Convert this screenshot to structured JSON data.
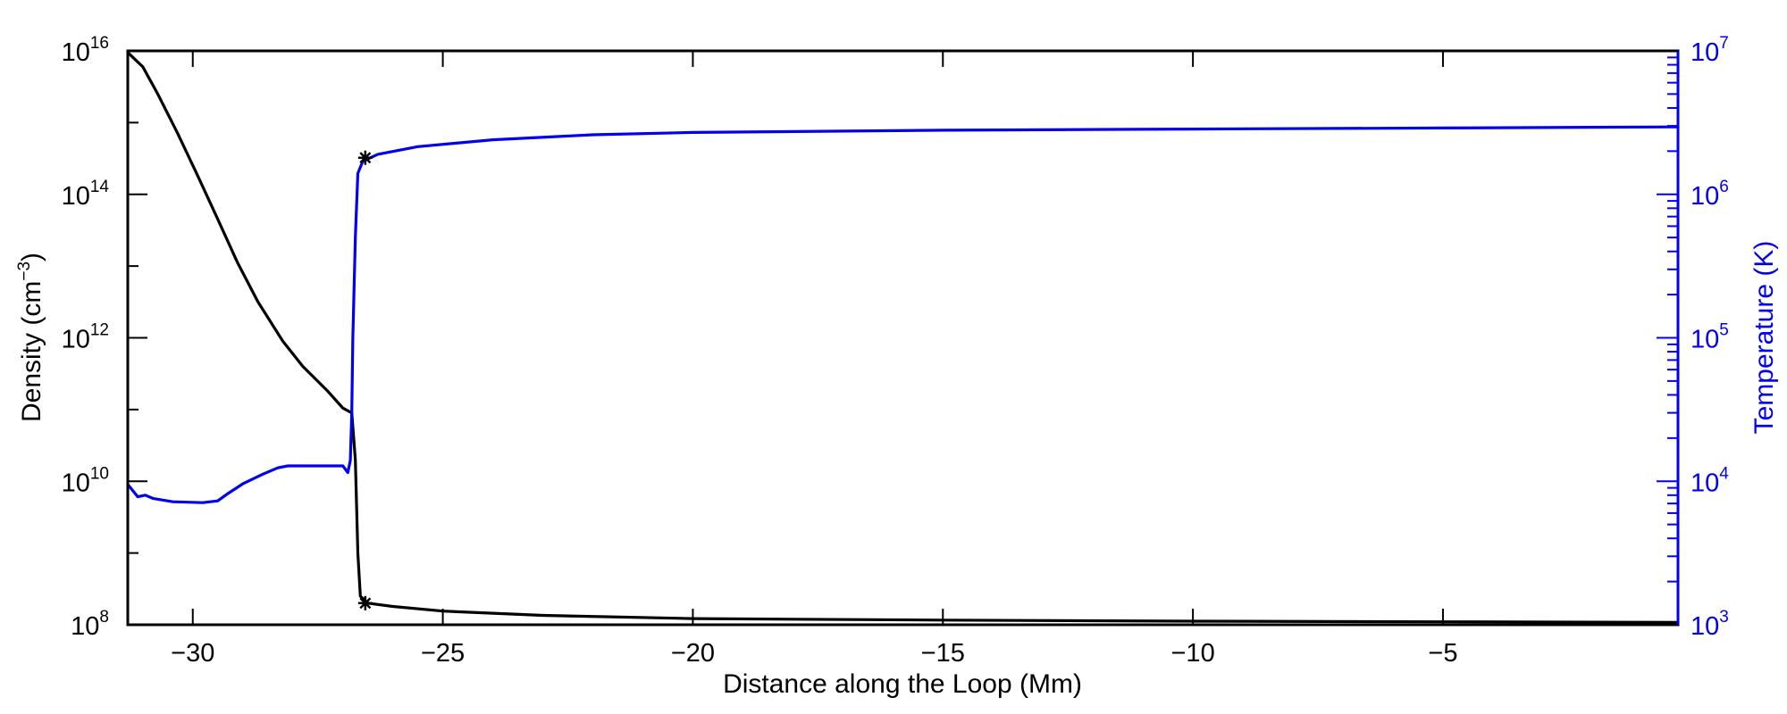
{
  "chart_data": {
    "type": "line",
    "title": "",
    "xlabel": "Distance along the Loop (Mm)",
    "x_range": [
      -31.3,
      -0.3
    ],
    "x_ticks": [
      {
        "value": -30,
        "label": "−30"
      },
      {
        "value": -25,
        "label": "−25"
      },
      {
        "value": -20,
        "label": "−20"
      },
      {
        "value": -15,
        "label": "−15"
      },
      {
        "value": -10,
        "label": "−10"
      },
      {
        "value": -5,
        "label": "−5"
      }
    ],
    "y_left": {
      "label_main": "Density (cm",
      "label_sup": "−3",
      "label_close": ")",
      "scale": "log",
      "range": [
        100000000.0,
        1e+16
      ],
      "ticks": [
        {
          "base": "10",
          "exp": "8",
          "value": 100000000.0
        },
        {
          "base": "10",
          "exp": "10",
          "value": 10000000000.0
        },
        {
          "base": "10",
          "exp": "12",
          "value": 1000000000000.0
        },
        {
          "base": "10",
          "exp": "14",
          "value": 100000000000000.0
        },
        {
          "base": "10",
          "exp": "16",
          "value": 1e+16
        }
      ],
      "color": "#000000"
    },
    "y_right": {
      "label": "Temperature (K)",
      "scale": "log",
      "range": [
        1000.0,
        10000000.0
      ],
      "ticks": [
        {
          "base": "10",
          "exp": "3",
          "value": 1000.0
        },
        {
          "base": "10",
          "exp": "4",
          "value": 10000.0
        },
        {
          "base": "10",
          "exp": "5",
          "value": 100000.0
        },
        {
          "base": "10",
          "exp": "6",
          "value": 1000000.0
        },
        {
          "base": "10",
          "exp": "7",
          "value": 10000000.0
        }
      ],
      "color": "#0000ee"
    },
    "series": [
      {
        "name": "Density",
        "axis": "left",
        "color": "#000000",
        "points": [
          [
            -31.3,
            9500000000000000.0
          ],
          [
            -31.0,
            6000000000000000.0
          ],
          [
            -30.7,
            2500000000000000.0
          ],
          [
            -30.3,
            700000000000000.0
          ],
          [
            -29.9,
            180000000000000.0
          ],
          [
            -29.5,
            45000000000000.0
          ],
          [
            -29.1,
            11000000000000.0
          ],
          [
            -28.7,
            3200000000000.0
          ],
          [
            -28.2,
            900000000000.0
          ],
          [
            -27.8,
            400000000000.0
          ],
          [
            -27.3,
            180000000000.0
          ],
          [
            -27.0,
            105000000000.0
          ],
          [
            -26.82,
            90000000000.0
          ],
          [
            -26.75,
            20000000000.0
          ],
          [
            -26.7,
            1000000000.0
          ],
          [
            -26.65,
            250000000.0
          ],
          [
            -26.5,
            200000000.0
          ],
          [
            -26.0,
            180000000.0
          ],
          [
            -25.0,
            155000000.0
          ],
          [
            -23.0,
            135000000.0
          ],
          [
            -20.0,
            122000000.0
          ],
          [
            -15.0,
            116000000.0
          ],
          [
            -10.0,
            112000000.0
          ],
          [
            -5.0,
            110000000.0
          ],
          [
            -0.3,
            108000000.0
          ]
        ]
      },
      {
        "name": "Temperature",
        "axis": "right",
        "color": "#0000ee",
        "points": [
          [
            -31.3,
            9500.0
          ],
          [
            -31.1,
            7800.0
          ],
          [
            -30.95,
            8000.0
          ],
          [
            -30.8,
            7600.0
          ],
          [
            -30.4,
            7200.0
          ],
          [
            -29.8,
            7100.0
          ],
          [
            -29.5,
            7300.0
          ],
          [
            -29.3,
            8200.0
          ],
          [
            -29.0,
            9600.0
          ],
          [
            -28.6,
            11200.0
          ],
          [
            -28.3,
            12400.0
          ],
          [
            -28.1,
            12800.0
          ],
          [
            -27.0,
            12800.0
          ],
          [
            -26.9,
            11500.0
          ],
          [
            -26.85,
            14000.0
          ],
          [
            -26.82,
            30000.0
          ],
          [
            -26.8,
            100000.0
          ],
          [
            -26.75,
            500000.0
          ],
          [
            -26.7,
            1400000.0
          ],
          [
            -26.6,
            1700000.0
          ],
          [
            -26.3,
            1900000.0
          ],
          [
            -25.5,
            2150000.0
          ],
          [
            -24.0,
            2400000.0
          ],
          [
            -22.0,
            2600000.0
          ],
          [
            -20.0,
            2700000.0
          ],
          [
            -15.0,
            2800000.0
          ],
          [
            -10.0,
            2850000.0
          ],
          [
            -5.0,
            2900000.0
          ],
          [
            -0.3,
            2950000.0
          ]
        ]
      }
    ],
    "markers": [
      {
        "name": "Density marker",
        "axis": "left",
        "symbol": "asterisk",
        "x": -26.55,
        "y": 200000000.0
      },
      {
        "name": "Temperature marker",
        "axis": "right",
        "symbol": "asterisk",
        "x": -26.55,
        "y": 1800000.0
      }
    ]
  }
}
